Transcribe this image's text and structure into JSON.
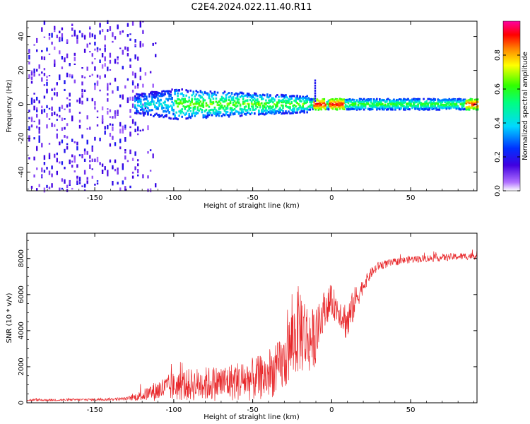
{
  "title": "C2E4.2024.022.11.40.R11",
  "colors": {
    "background": "#ffffff",
    "axis": "#000000",
    "snr_line": "#e8282b",
    "spec_dark": "#3a00c8",
    "spec_mid": "#00e0ff",
    "spec_green": "#22e000",
    "spec_peak": "#e00000"
  },
  "chart_data": [
    {
      "type": "heatmap",
      "name": "spectrogram",
      "title": "C2E4.2024.022.11.40.R11",
      "xlabel": "Height of straight line (km)",
      "ylabel": "Frequency (Hz)",
      "xlim": [
        -193,
        92
      ],
      "ylim": [
        -51,
        49
      ],
      "xticks": [
        -150,
        -100,
        -50,
        0,
        50
      ],
      "yticks": [
        -40,
        -20,
        0,
        20,
        40
      ],
      "xtick_labels": [
        "-150",
        "-100",
        "-50",
        "0",
        "50"
      ],
      "ytick_labels": [
        "-40",
        "-20",
        "0",
        "20",
        "40"
      ],
      "description_values": {
        "noise_region_x": [
          -193,
          -110
        ],
        "signal_band_center_hz": 0,
        "signal_band_halfwidth_hz_at_-100km": 8,
        "signal_band_halfwidth_hz_at_50km": 3,
        "strongest_amplitude_x": [
          -10,
          10,
          90
        ]
      },
      "colorbar": {
        "label": "Normalized spectral amplitude",
        "range": [
          0,
          1
        ],
        "ticks": [
          0.0,
          0.2,
          0.4,
          0.6,
          0.8
        ],
        "tick_labels": [
          "0.0",
          "0.2",
          "0.4",
          "0.6",
          "0.8"
        ],
        "colormap": "rainbow (white, violet, blue, cyan, green, yellow, orange, red, magenta)"
      }
    },
    {
      "type": "line",
      "name": "snr",
      "xlabel": "Height of straight line (km)",
      "ylabel": "SNR (10 * v/v)",
      "xlim": [
        -193,
        92
      ],
      "ylim": [
        0,
        9400
      ],
      "xticks": [
        -150,
        -100,
        -50,
        0,
        50
      ],
      "yticks": [
        0,
        2000,
        4000,
        6000,
        8000
      ],
      "xtick_labels": [
        "-150",
        "-100",
        "-50",
        "0",
        "50"
      ],
      "ytick_labels": [
        "0",
        "2000",
        "4000",
        "6000",
        "8000"
      ],
      "series": [
        {
          "name": "SNR envelope",
          "x": [
            -193,
            -170,
            -150,
            -130,
            -120,
            -110,
            -100,
            -90,
            -80,
            -70,
            -60,
            -50,
            -40,
            -30,
            -25,
            -20,
            -15,
            -10,
            -5,
            0,
            5,
            10,
            15,
            20,
            25,
            30,
            40,
            50,
            60,
            70,
            80,
            90
          ],
          "y": [
            150,
            160,
            180,
            220,
            400,
            700,
            900,
            1000,
            1050,
            1100,
            1200,
            1300,
            1500,
            2200,
            3400,
            4200,
            3500,
            3600,
            5200,
            5600,
            5100,
            4400,
            5700,
            6500,
            7200,
            7600,
            7800,
            7950,
            8000,
            8050,
            8100,
            8150
          ],
          "amplitude": [
            60,
            60,
            70,
            90,
            300,
            600,
            800,
            900,
            950,
            1000,
            1100,
            1200,
            1300,
            1600,
            2100,
            2600,
            2000,
            1500,
            1000,
            900,
            800,
            1200,
            800,
            400,
            300,
            250,
            200,
            200,
            200,
            200,
            200,
            200
          ]
        }
      ]
    }
  ]
}
